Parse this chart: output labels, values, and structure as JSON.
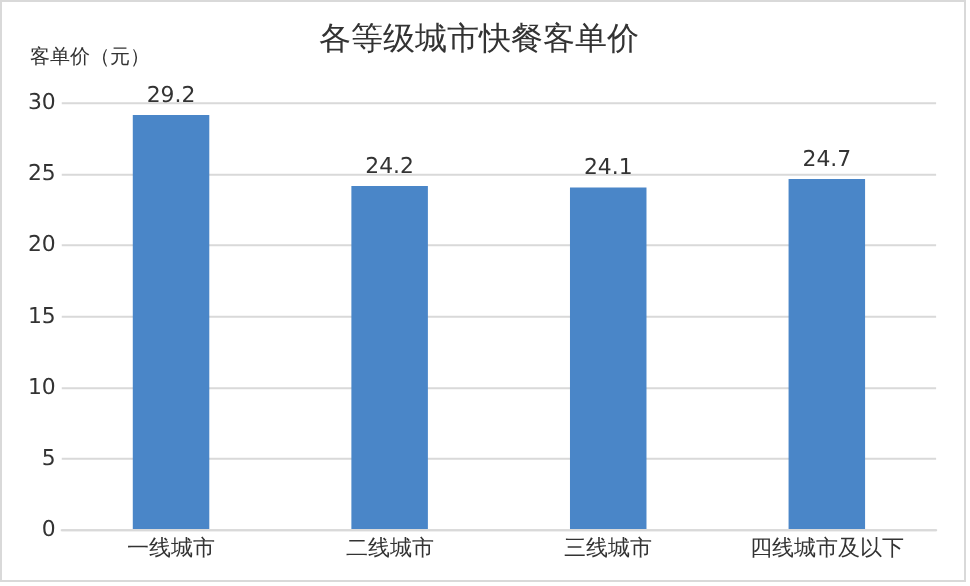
{
  "chart_data": {
    "type": "bar",
    "title": "各等级城市快餐客单价",
    "ylabel": "客单价（元）",
    "categories": [
      "一线城市",
      "二线城市",
      "三线城市",
      "四线城市及以下"
    ],
    "values": [
      29.2,
      24.2,
      24.1,
      24.7
    ],
    "color": "#4a86c8",
    "ylim": [
      0,
      30
    ],
    "yticks": [
      0,
      5,
      10,
      15,
      20,
      25,
      30
    ],
    "grid": "y",
    "legend": false,
    "data_labels": true
  }
}
